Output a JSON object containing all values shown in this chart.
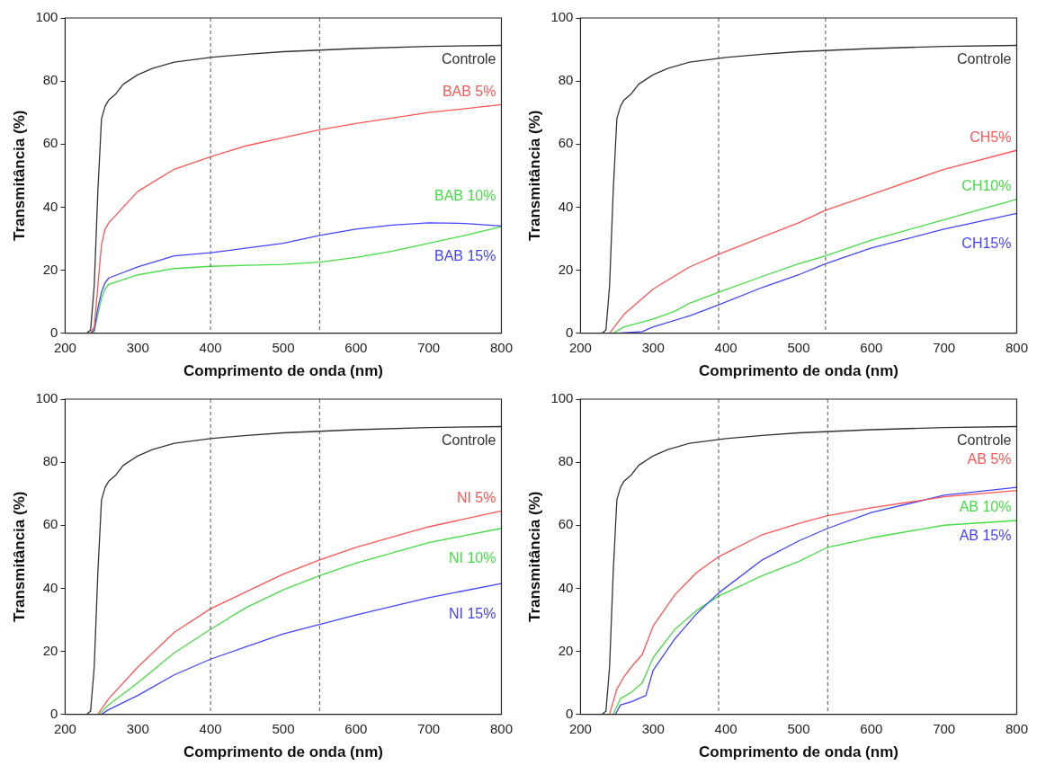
{
  "chart_data": [
    {
      "type": "line",
      "xlabel": "Comprimento de onda (nm)",
      "ylabel": "Transmitância (%)",
      "xlim": [
        200,
        800
      ],
      "xticks": [
        200,
        300,
        400,
        500,
        600,
        700,
        800
      ],
      "ylim": [
        0,
        100
      ],
      "yticks": [
        0,
        20,
        40,
        60,
        80,
        100
      ],
      "ref_lines": [
        {
          "axis": "x",
          "value": 400,
          "line_style": "dashed",
          "color": "#555555"
        },
        {
          "axis": "x",
          "value": 550,
          "line_style": "dashed",
          "color": "#555555"
        }
      ],
      "series": [
        {
          "name": "Controle",
          "color": "#333333",
          "x": [
            200,
            230,
            235,
            240,
            245,
            250,
            255,
            260,
            270,
            280,
            300,
            320,
            350,
            400,
            450,
            500,
            550,
            600,
            700,
            800
          ],
          "values": [
            0,
            0,
            1,
            15,
            45,
            68,
            72,
            74,
            76,
            79,
            82,
            84,
            86,
            87.5,
            88.5,
            89.3,
            89.8,
            90.3,
            91,
            91.3
          ]
        },
        {
          "name": "BAB 5%",
          "color": "#ff5555",
          "x": [
            200,
            235,
            240,
            245,
            250,
            255,
            260,
            280,
            300,
            350,
            400,
            450,
            500,
            550,
            600,
            700,
            800
          ],
          "values": [
            0,
            0,
            2,
            15,
            28,
            33,
            35,
            40,
            45,
            52,
            56,
            59.5,
            62,
            64.5,
            66.5,
            70,
            72.5
          ]
        },
        {
          "name": "BAB 15%",
          "color": "#4444ff",
          "x": [
            200,
            235,
            240,
            245,
            250,
            255,
            260,
            300,
            350,
            400,
            450,
            500,
            550,
            600,
            650,
            700,
            750,
            800
          ],
          "values": [
            0,
            0,
            1,
            8,
            13,
            16,
            17.5,
            21,
            24.5,
            25.5,
            27,
            28.5,
            31,
            33,
            34.3,
            35,
            34.8,
            34
          ]
        },
        {
          "name": "BAB 10%",
          "color": "#44dd44",
          "x": [
            200,
            235,
            240,
            245,
            250,
            255,
            260,
            300,
            350,
            400,
            450,
            500,
            550,
            600,
            650,
            700,
            750,
            800
          ],
          "values": [
            0,
            0,
            0.5,
            6,
            11,
            14,
            15.5,
            18.5,
            20.5,
            21.2,
            21.5,
            21.8,
            22.5,
            24,
            26,
            28.5,
            31,
            33.8
          ]
        }
      ]
    },
    {
      "type": "line",
      "xlabel": "Comprimento de onda (nm)",
      "ylabel": "Transmitância (%)",
      "xlim": [
        200,
        800
      ],
      "xticks": [
        200,
        300,
        400,
        500,
        600,
        700,
        800
      ],
      "ylim": [
        0,
        100
      ],
      "yticks": [
        0,
        20,
        40,
        60,
        80,
        100
      ],
      "ref_lines": [
        {
          "axis": "x",
          "value": 390,
          "line_style": "dashed",
          "color": "#555555"
        },
        {
          "axis": "x",
          "value": 537,
          "line_style": "dashed",
          "color": "#555555"
        }
      ],
      "series": [
        {
          "name": "Controle",
          "color": "#333333",
          "x": [
            200,
            230,
            235,
            240,
            245,
            250,
            255,
            260,
            270,
            280,
            300,
            320,
            350,
            400,
            450,
            500,
            550,
            600,
            700,
            800
          ],
          "values": [
            0,
            0,
            1,
            15,
            45,
            68,
            72,
            74,
            76,
            79,
            82,
            84,
            86,
            87.5,
            88.5,
            89.3,
            89.8,
            90.3,
            91,
            91.3
          ]
        },
        {
          "name": "CH5%",
          "color": "#ff5555",
          "x": [
            200,
            240,
            250,
            260,
            280,
            300,
            350,
            390,
            450,
            500,
            537,
            600,
            700,
            800
          ],
          "values": [
            0,
            0,
            3,
            6,
            10,
            14,
            21,
            25,
            30.5,
            35,
            39,
            44,
            52,
            58
          ]
        },
        {
          "name": "CH10%",
          "color": "#44dd44",
          "x": [
            200,
            245,
            260,
            300,
            330,
            350,
            390,
            450,
            500,
            537,
            600,
            700,
            800
          ],
          "values": [
            0,
            0,
            2,
            4.5,
            7,
            9.5,
            13,
            18,
            22,
            24.5,
            29.5,
            36,
            42.5
          ]
        },
        {
          "name": "CH15%",
          "color": "#4444ff",
          "x": [
            200,
            250,
            285,
            300,
            350,
            390,
            450,
            500,
            537,
            600,
            700,
            800
          ],
          "values": [
            0,
            0,
            0.5,
            2,
            5.5,
            9,
            14.5,
            18.5,
            22,
            27,
            33,
            38
          ]
        }
      ]
    },
    {
      "type": "line",
      "xlabel": "Comprimento de onda (nm)",
      "ylabel": "Transmitância (%)",
      "xlim": [
        200,
        800
      ],
      "xticks": [
        200,
        300,
        400,
        500,
        600,
        700,
        800
      ],
      "ylim": [
        0,
        100
      ],
      "yticks": [
        0,
        20,
        40,
        60,
        80,
        100
      ],
      "ref_lines": [
        {
          "axis": "x",
          "value": 400,
          "line_style": "dashed",
          "color": "#555555"
        },
        {
          "axis": "x",
          "value": 550,
          "line_style": "dashed",
          "color": "#555555"
        }
      ],
      "series": [
        {
          "name": "Controle",
          "color": "#333333",
          "x": [
            200,
            230,
            235,
            240,
            245,
            250,
            255,
            260,
            270,
            280,
            300,
            320,
            350,
            400,
            450,
            500,
            550,
            600,
            700,
            800
          ],
          "values": [
            0,
            0,
            1,
            15,
            45,
            68,
            72,
            74,
            76,
            79,
            82,
            84,
            86,
            87.5,
            88.5,
            89.3,
            89.8,
            90.3,
            91,
            91.3
          ]
        },
        {
          "name": "NI 5%",
          "color": "#ff5555",
          "x": [
            200,
            245,
            260,
            300,
            350,
            400,
            450,
            500,
            550,
            600,
            700,
            800
          ],
          "values": [
            0,
            0,
            5,
            15,
            26,
            33.5,
            39,
            44.5,
            49,
            53,
            59.5,
            64.5
          ]
        },
        {
          "name": "NI 10%",
          "color": "#44dd44",
          "x": [
            200,
            247,
            260,
            300,
            350,
            400,
            450,
            500,
            550,
            600,
            700,
            800
          ],
          "values": [
            0,
            0,
            3,
            10,
            19.5,
            27,
            34,
            39.5,
            44,
            48,
            54.5,
            59
          ]
        },
        {
          "name": "NI 15%",
          "color": "#4444ff",
          "x": [
            200,
            250,
            260,
            300,
            350,
            400,
            450,
            500,
            550,
            600,
            700,
            800
          ],
          "values": [
            0,
            0,
            1.5,
            6,
            12.5,
            17.5,
            21.5,
            25.5,
            28.5,
            31.5,
            37,
            41.5
          ]
        }
      ]
    },
    {
      "type": "line",
      "xlabel": "Comprimento de onda (nm)",
      "ylabel": "Transmitância (%)",
      "xlim": [
        200,
        800
      ],
      "xticks": [
        200,
        300,
        400,
        500,
        600,
        700,
        800
      ],
      "ylim": [
        0,
        100
      ],
      "yticks": [
        0,
        20,
        40,
        60,
        80,
        100
      ],
      "ref_lines": [
        {
          "axis": "x",
          "value": 390,
          "line_style": "dashed",
          "color": "#555555"
        },
        {
          "axis": "x",
          "value": 540,
          "line_style": "dashed",
          "color": "#555555"
        }
      ],
      "series": [
        {
          "name": "Controle",
          "color": "#333333",
          "x": [
            200,
            230,
            235,
            240,
            245,
            250,
            255,
            260,
            270,
            280,
            300,
            320,
            350,
            400,
            450,
            500,
            550,
            600,
            700,
            800
          ],
          "values": [
            0,
            0,
            1,
            15,
            45,
            68,
            72,
            74,
            76,
            79,
            82,
            84,
            86,
            87.5,
            88.5,
            89.3,
            89.8,
            90.3,
            91,
            91.3
          ]
        },
        {
          "name": "AB 5%",
          "color": "#ff5555",
          "x": [
            200,
            240,
            250,
            260,
            270,
            285,
            300,
            330,
            360,
            390,
            450,
            500,
            540,
            600,
            700,
            800
          ],
          "values": [
            0,
            0,
            8,
            12,
            15,
            19,
            28,
            38,
            45,
            50,
            57,
            60.5,
            63,
            65.5,
            69,
            71
          ]
        },
        {
          "name": "AB 15%",
          "color": "#4444ff",
          "x": [
            200,
            248,
            255,
            270,
            290,
            300,
            330,
            360,
            390,
            450,
            500,
            540,
            600,
            700,
            800
          ],
          "values": [
            0,
            0,
            3,
            4,
            6,
            14,
            24,
            32,
            38.5,
            49,
            55,
            59,
            64,
            69.5,
            72
          ]
        },
        {
          "name": "AB 10%",
          "color": "#44dd44",
          "x": [
            200,
            245,
            255,
            270,
            285,
            300,
            330,
            360,
            390,
            450,
            500,
            540,
            600,
            700,
            800
          ],
          "values": [
            0,
            0,
            5,
            7,
            10,
            18,
            27,
            33,
            37.5,
            44,
            48.5,
            53,
            56,
            60,
            61.5
          ]
        }
      ]
    }
  ]
}
